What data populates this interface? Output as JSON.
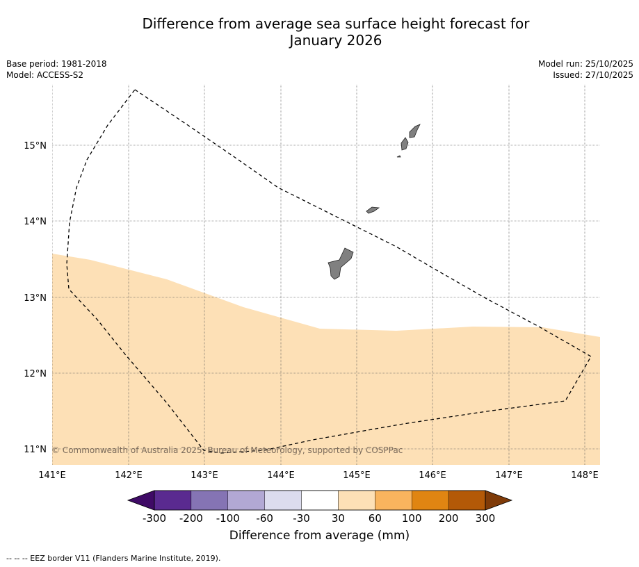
{
  "title": {
    "line1": "Difference from average sea surface height forecast for",
    "line2": "January 2026"
  },
  "meta": {
    "base_period": "Base period: 1981-2018",
    "model": "Model: ACCESS-S2",
    "model_run": "Model run: 25/10/2025",
    "issued": "Issued: 27/10/2025"
  },
  "map": {
    "lon_labels": [
      "141°E",
      "142°E",
      "143°E",
      "144°E",
      "145°E",
      "146°E",
      "147°E",
      "148°E"
    ],
    "lat_labels": [
      "15°N",
      "14°N",
      "13°N",
      "12°N",
      "11°N"
    ],
    "copyright": "© Commonwealth of Australia 2025, Bureau of Meteorology, supported by COSPPac",
    "colors": {
      "anomaly_fill": "#fde0b6",
      "land": "#808080",
      "gridline": "#555555"
    },
    "regions": [
      {
        "name": "southern area",
        "category": "30 to 60 mm"
      },
      {
        "name": "northern area",
        "category": "-30 to 30 mm"
      }
    ]
  },
  "colorbar": {
    "ticks": [
      "-300",
      "-200",
      "-100",
      "-60",
      "-30",
      "30",
      "60",
      "100",
      "200",
      "300"
    ],
    "colors": [
      "#3f0a66",
      "#5a2a90",
      "#8574b4",
      "#b2a8d4",
      "#dcdcee",
      "#ffffff",
      "#fde0b6",
      "#f9b45e",
      "#e08512",
      "#b35907",
      "#7f3b08"
    ],
    "label": "Difference from average (mm)"
  },
  "footnote": "--  --  -- EEZ border V11 (Flanders Marine Institute, 2019)."
}
